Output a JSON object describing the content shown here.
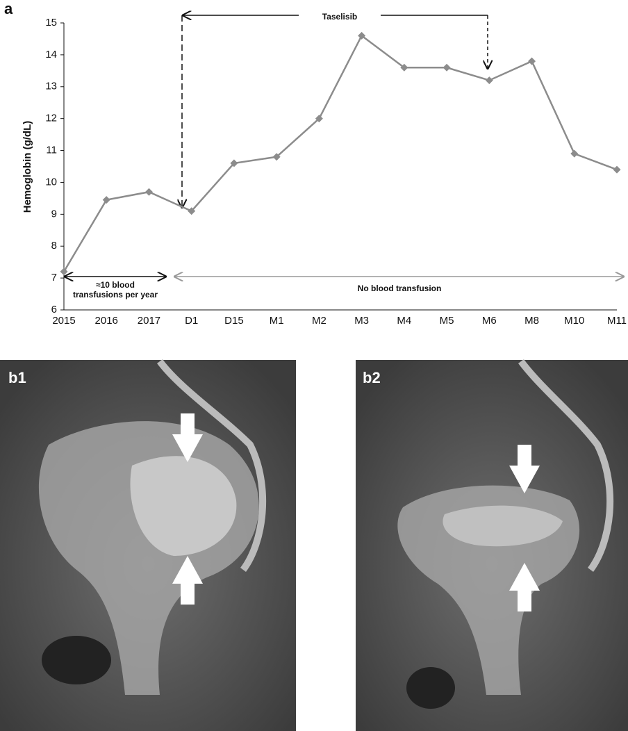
{
  "chart_data": {
    "type": "line",
    "panel_label": "a",
    "ylabel": "Hemoglobin (g/dL)",
    "categories": [
      "2015",
      "2016",
      "2017",
      "D1",
      "D15",
      "M1",
      "M2",
      "M3",
      "M4",
      "M5",
      "M6",
      "M8",
      "M10",
      "M11"
    ],
    "values": [
      7.2,
      9.45,
      9.7,
      9.1,
      10.6,
      10.8,
      12.0,
      14.6,
      13.6,
      13.6,
      13.2,
      13.8,
      10.9,
      10.4
    ],
    "color": "#8c8c8c",
    "ylim": [
      6,
      15
    ],
    "yticks": [
      6,
      7,
      8,
      9,
      10,
      11,
      12,
      13,
      14,
      15
    ],
    "annotations": {
      "treatment": "Taselisib",
      "before_line1": "≈10 blood",
      "before_line2": "transfusions per year",
      "after": "No blood transfusion"
    }
  },
  "images": {
    "b1": "b1",
    "b2": "b2"
  }
}
